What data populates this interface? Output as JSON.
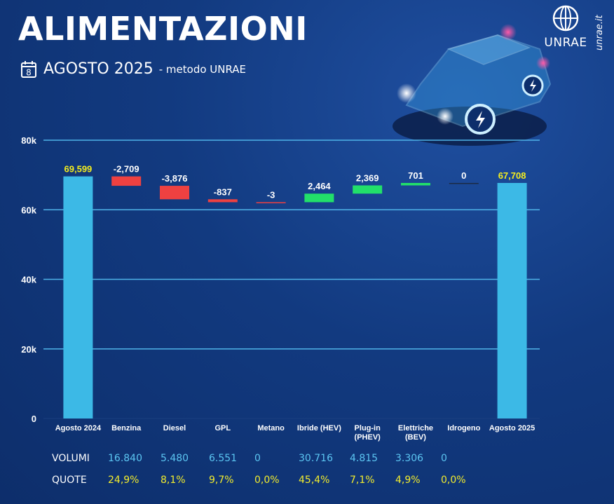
{
  "header": {
    "title": "ALIMENTAZIONI",
    "calendar_day": "8",
    "subtitle": "AGOSTO 2025",
    "method": "- metodo UNRAE"
  },
  "logo": {
    "text": "UNRAE",
    "site": "unrae.it"
  },
  "colors": {
    "total": "#3cb9e6",
    "negative": "#ee4141",
    "positive": "#22e06a",
    "grid": "#4fb3e8",
    "total_label": "#f5ee1e",
    "volumes": "#5cc6f2",
    "shares": "#f2ec2d"
  },
  "chart_data": {
    "type": "bar",
    "subtype": "waterfall",
    "ylim": [
      0,
      80000
    ],
    "yticks": [
      0,
      20000,
      40000,
      60000,
      80000
    ],
    "ytick_labels": [
      "0",
      "20k",
      "40k",
      "60k",
      "80k"
    ],
    "grid": true,
    "categories": [
      [
        "Agosto 2024"
      ],
      [
        "Benzina"
      ],
      [
        "Diesel"
      ],
      [
        "GPL"
      ],
      [
        "Metano"
      ],
      [
        "Ibride (HEV)"
      ],
      [
        "Plug-in",
        "(PHEV)"
      ],
      [
        "Elettriche",
        "(BEV)"
      ],
      [
        "Idrogeno"
      ],
      [
        "Agosto 2025"
      ]
    ],
    "kinds": [
      "total",
      "delta",
      "delta",
      "delta",
      "delta",
      "delta",
      "delta",
      "delta",
      "delta",
      "total"
    ],
    "values": [
      69599,
      -2709,
      -3876,
      -837,
      -3,
      2464,
      2369,
      701,
      0,
      67708
    ],
    "labels": [
      "69,599",
      "-2,709",
      "-3,876",
      "-837",
      "-3",
      "2,464",
      "2,369",
      "701",
      "0",
      "67,708"
    ]
  },
  "table": {
    "volumes_label": "VOLUMI",
    "shares_label": "QUOTE",
    "volumes": [
      "16.840",
      "5.480",
      "6.551",
      "0",
      "30.716",
      "4.815",
      "3.306",
      "0"
    ],
    "shares": [
      "24,9%",
      "8,1%",
      "9,7%",
      "0,0%",
      "45,4%",
      "7,1%",
      "4,9%",
      "0,0%"
    ]
  }
}
